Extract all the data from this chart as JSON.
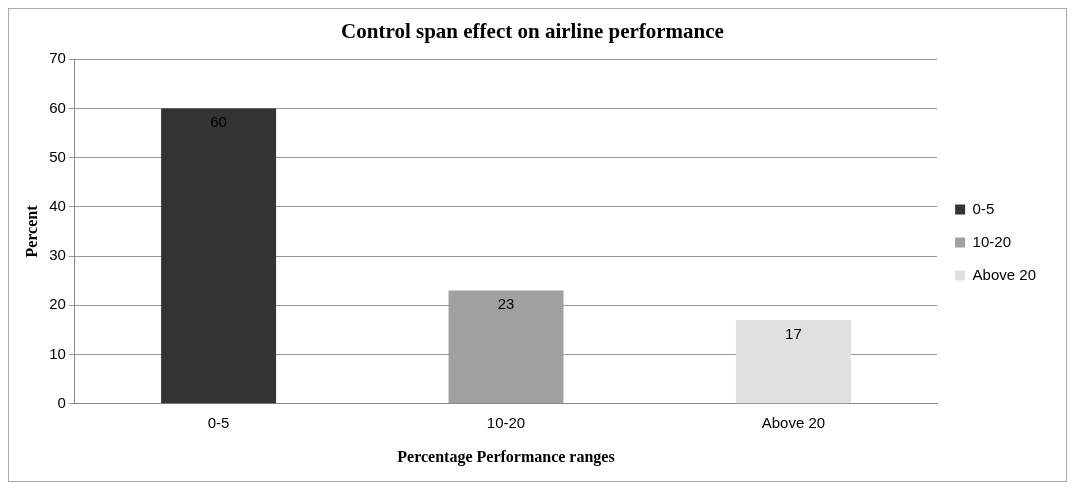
{
  "chart_data": {
    "type": "bar",
    "title": "Control span effect on airline performance",
    "xlabel": "Percentage Performance ranges",
    "ylabel": "Percent",
    "categories": [
      "0-5",
      "10-20",
      "Above 20"
    ],
    "series": [
      {
        "name": "0-5",
        "color": "#333333",
        "values": [
          60,
          null,
          null
        ]
      },
      {
        "name": "10-20",
        "color": "#a0a0a0",
        "values": [
          null,
          23,
          null
        ]
      },
      {
        "name": "Above 20",
        "color": "#e0e0e0",
        "values": [
          null,
          null,
          17
        ]
      }
    ],
    "stacked": true,
    "ylim": [
      0,
      70
    ],
    "yticks": [
      0,
      10,
      20,
      30,
      40,
      50,
      60,
      70
    ],
    "grid": "y",
    "legend": "right",
    "data_labels": true
  }
}
